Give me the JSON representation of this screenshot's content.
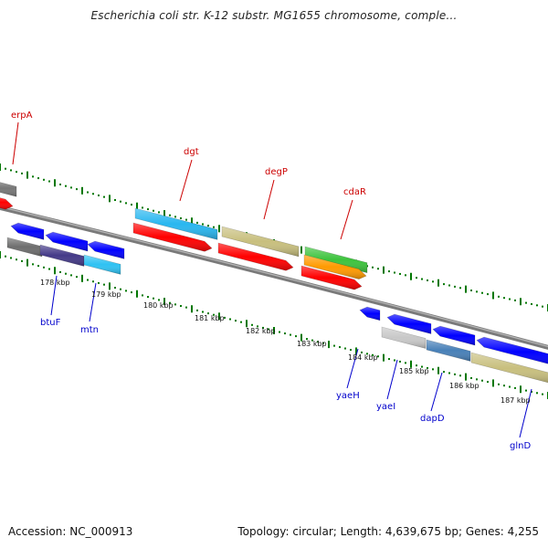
{
  "title": "Escherichia coli str. K-12 substr. MG1655 chromosome, comple...",
  "footer": {
    "accession": "Accession: NC_000913",
    "topology": "Topology: circular; Length: 4,639,675 bp; Genes: 4,255"
  },
  "colors": {
    "backbone": "#808080",
    "tick": "#007700",
    "label_forward": "#cc0000",
    "label_reverse": "#0000cc"
  },
  "scale_labels": [
    "178 kbp",
    "179 kbp",
    "180 kbp",
    "181 kbp",
    "182 kbp",
    "183 kbp",
    "184 kbp",
    "185 kbp",
    "186 kbp",
    "187 kbp"
  ],
  "gene_labels": {
    "top": [
      "erpA",
      "dgt",
      "degP",
      "cdaR"
    ],
    "bottom": [
      "btuF",
      "mtn",
      "yaeH",
      "yaeI",
      "dapD",
      "glnD"
    ]
  }
}
